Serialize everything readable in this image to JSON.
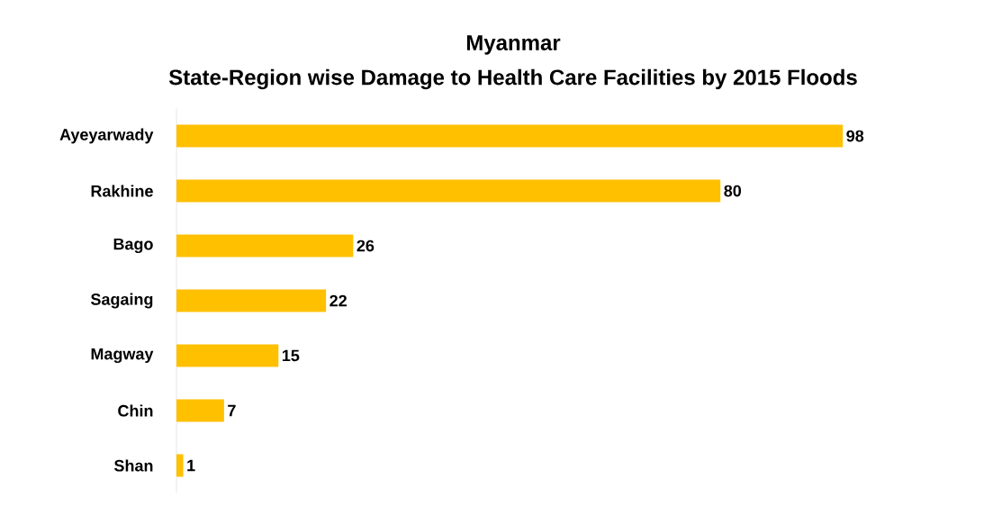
{
  "chart_data": {
    "type": "bar",
    "orientation": "horizontal",
    "title": "Myanmar",
    "subtitle": "State-Region wise Damage to Health Care Facilities by 2015 Floods",
    "categories": [
      "Ayeyarwady",
      "Rakhine",
      "Bago",
      "Sagaing",
      "Magway",
      "Chin",
      "Shan"
    ],
    "values": [
      98,
      80,
      26,
      22,
      15,
      7,
      1
    ],
    "color": "#ffc000",
    "data_labels": true
  }
}
